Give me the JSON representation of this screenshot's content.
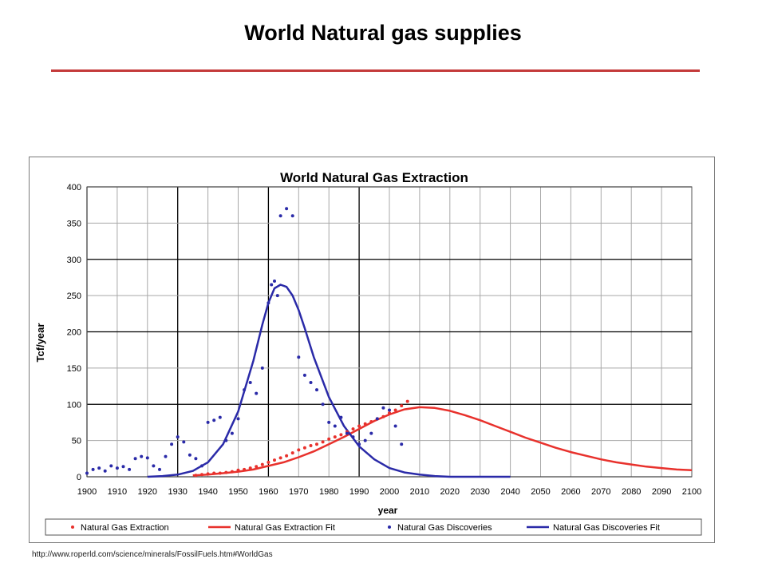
{
  "slide": {
    "title": "World Natural gas supplies",
    "source": "http://www.roperld.com/science/minerals/FossilFuels.htm#WorldGas",
    "rule_color": "#c43a3a"
  },
  "chart_data": {
    "type": "scatter",
    "title": "World Natural Gas Extraction",
    "xlabel": "year",
    "ylabel": "Tcf/year",
    "xlim": [
      1900,
      2100
    ],
    "ylim": [
      0,
      400
    ],
    "x_ticks": [
      1900,
      1910,
      1920,
      1930,
      1940,
      1950,
      1960,
      1970,
      1980,
      1990,
      2000,
      2010,
      2020,
      2030,
      2040,
      2050,
      2060,
      2070,
      2080,
      2090,
      2100
    ],
    "y_ticks": [
      0,
      50,
      100,
      150,
      200,
      250,
      300,
      350,
      400
    ],
    "grid": true,
    "legend_position": "bottom",
    "series": [
      {
        "name": "Natural Gas Extraction",
        "kind": "points",
        "color": "#e8312c",
        "x": [
          1936,
          1938,
          1940,
          1942,
          1944,
          1946,
          1948,
          1950,
          1952,
          1954,
          1956,
          1958,
          1960,
          1962,
          1964,
          1966,
          1968,
          1970,
          1972,
          1974,
          1976,
          1978,
          1980,
          1982,
          1984,
          1986,
          1988,
          1990,
          1992,
          1994,
          1996,
          1998,
          2000,
          2002,
          2004,
          2006
        ],
        "y": [
          2,
          3,
          4,
          5,
          5,
          6,
          7,
          9,
          10,
          12,
          14,
          17,
          20,
          23,
          26,
          29,
          33,
          37,
          40,
          43,
          45,
          48,
          52,
          55,
          58,
          62,
          66,
          70,
          73,
          76,
          80,
          83,
          88,
          92,
          98,
          104
        ]
      },
      {
        "name": "Natural Gas Extraction Fit",
        "kind": "line",
        "color": "#e8312c",
        "x": [
          1935,
          1940,
          1945,
          1950,
          1955,
          1960,
          1965,
          1970,
          1975,
          1980,
          1985,
          1990,
          1995,
          2000,
          2005,
          2010,
          2015,
          2020,
          2025,
          2030,
          2035,
          2040,
          2045,
          2050,
          2055,
          2060,
          2065,
          2070,
          2075,
          2080,
          2085,
          2090,
          2095,
          2100
        ],
        "y": [
          2,
          3,
          5,
          7,
          10,
          15,
          20,
          27,
          35,
          45,
          55,
          66,
          77,
          86,
          93,
          96,
          95,
          91,
          85,
          78,
          70,
          62,
          54,
          47,
          40,
          34,
          29,
          24,
          20,
          17,
          14,
          12,
          10,
          9
        ]
      },
      {
        "name": "Natural Gas Discoveries",
        "kind": "points",
        "color": "#2a2aa8",
        "x": [
          1900,
          1902,
          1904,
          1906,
          1908,
          1910,
          1912,
          1914,
          1916,
          1918,
          1920,
          1922,
          1924,
          1926,
          1928,
          1930,
          1932,
          1934,
          1936,
          1938,
          1940,
          1942,
          1944,
          1946,
          1948,
          1950,
          1952,
          1954,
          1956,
          1958,
          1960,
          1961,
          1962,
          1963,
          1964,
          1966,
          1968,
          1970,
          1972,
          1974,
          1976,
          1978,
          1980,
          1982,
          1984,
          1986,
          1988,
          1990,
          1992,
          1994,
          1996,
          1998,
          2000,
          2002,
          2004
        ],
        "y": [
          5,
          10,
          12,
          8,
          15,
          12,
          14,
          10,
          25,
          28,
          26,
          15,
          10,
          28,
          45,
          55,
          48,
          30,
          25,
          15,
          75,
          78,
          82,
          50,
          60,
          80,
          120,
          130,
          115,
          150,
          240,
          265,
          270,
          250,
          360,
          370,
          360,
          165,
          140,
          130,
          120,
          100,
          75,
          70,
          82,
          60,
          55,
          45,
          50,
          60,
          80,
          95,
          92,
          70,
          45
        ]
      },
      {
        "name": "Natural Gas Discoveries Fit",
        "kind": "line",
        "color": "#2a2aa8",
        "x": [
          1920,
          1925,
          1930,
          1935,
          1940,
          1945,
          1950,
          1955,
          1958,
          1960,
          1962,
          1964,
          1966,
          1968,
          1970,
          1972,
          1975,
          1980,
          1985,
          1990,
          1995,
          2000,
          2005,
          2010,
          2015,
          2020,
          2030,
          2040
        ],
        "y": [
          0,
          1,
          3,
          8,
          20,
          45,
          90,
          160,
          210,
          240,
          260,
          265,
          262,
          250,
          230,
          205,
          165,
          110,
          70,
          42,
          24,
          12,
          6,
          3,
          1,
          0,
          0,
          0
        ]
      }
    ]
  }
}
